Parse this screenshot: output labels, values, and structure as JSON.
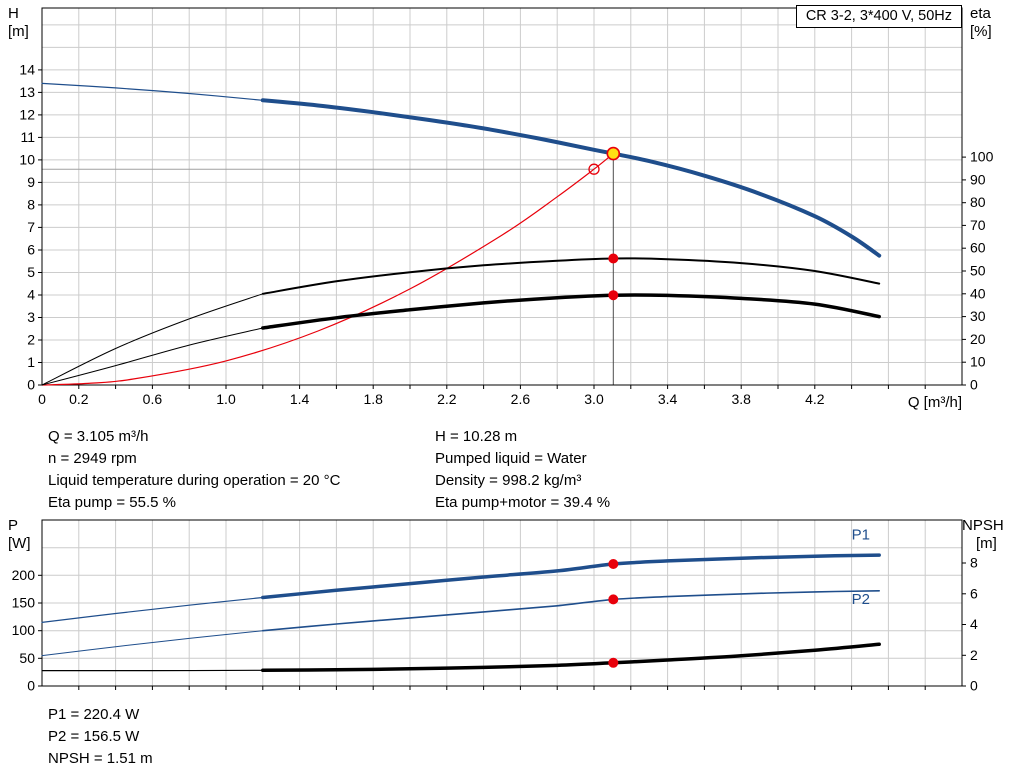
{
  "info_top": {
    "col1": [
      "Q = 3.105 m³/h",
      "n = 2949 rpm",
      "Liquid temperature during operation = 20 °C",
      "Eta pump = 55.5 %"
    ],
    "col2": [
      "H = 10.28 m",
      "Pumped liquid = Water",
      "Density = 998.2 kg/m³",
      "Eta pump+motor = 39.4 %"
    ]
  },
  "info_bottom": [
    "P1 = 220.4 W",
    "P2 = 156.5 W",
    "NPSH = 1.51 m"
  ],
  "colors": {
    "curve_blue": "#1f4e8c",
    "curve_red": "#e8000b",
    "curve_black": "#000000",
    "marker_red": "#e8000b",
    "marker_yellow": "#ffe014",
    "grid": "#cccccc",
    "guide_dark": "#4d4d4d",
    "guide_light": "#a0a0a0"
  },
  "chart_data": [
    {
      "name": "hq-eta-chart",
      "type": "line",
      "title": "CR 3-2, 3*400 V, 50Hz",
      "axes": {
        "x": {
          "label": "Q [m³/h]",
          "range": [
            0,
            5.0
          ],
          "grid_step": 0.2,
          "ticks": [
            {
              "v": 0,
              "l": "0"
            },
            {
              "v": 0.2,
              "l": "0.2"
            },
            {
              "v": 0.6,
              "l": "0.6"
            },
            {
              "v": 1.0,
              "l": "1.0"
            },
            {
              "v": 1.4,
              "l": "1.4"
            },
            {
              "v": 1.8,
              "l": "1.8"
            },
            {
              "v": 2.2,
              "l": "2.2"
            },
            {
              "v": 2.6,
              "l": "2.6"
            },
            {
              "v": 3.0,
              "l": "3.0"
            },
            {
              "v": 3.4,
              "l": "3.4"
            },
            {
              "v": 3.8,
              "l": "3.8"
            },
            {
              "v": 4.2,
              "l": "4.2"
            }
          ]
        },
        "left": {
          "name": "H",
          "unit": "[m]",
          "range": [
            0,
            16.75
          ],
          "grid_step": 1,
          "ticks": [
            0,
            1,
            2,
            3,
            4,
            5,
            6,
            7,
            8,
            9,
            10,
            11,
            12,
            13,
            14
          ]
        },
        "right": {
          "name": "eta",
          "unit": "[%]",
          "range": [
            0,
            165.4
          ],
          "ticks": [
            0,
            10,
            20,
            30,
            40,
            50,
            60,
            70,
            80,
            90,
            100
          ]
        }
      },
      "series": [
        {
          "sname": "head-curve-extension",
          "axis": "left",
          "color": "#1f4e8c",
          "width": 1.2,
          "x": [
            0,
            0.4,
            0.8,
            1.2
          ],
          "y": [
            13.4,
            13.2,
            12.95,
            12.65
          ]
        },
        {
          "sname": "head-curve",
          "axis": "left",
          "color": "#1f4e8c",
          "width": 4,
          "x": [
            1.2,
            1.5,
            1.8,
            2.1,
            2.4,
            2.7,
            3.0,
            3.105,
            3.3,
            3.6,
            3.9,
            4.2,
            4.4,
            4.55
          ],
          "y": [
            12.65,
            12.42,
            12.12,
            11.78,
            11.4,
            10.95,
            10.45,
            10.28,
            9.95,
            9.3,
            8.5,
            7.5,
            6.6,
            5.75
          ]
        },
        {
          "sname": "system-curve",
          "axis": "left",
          "color": "#e8000b",
          "width": 1.2,
          "x": [
            0,
            0.25,
            0.5,
            1.0,
            1.5,
            2.0,
            2.5,
            2.8,
            3.0,
            3.105
          ],
          "y": [
            0,
            0.07,
            0.27,
            1.07,
            2.4,
            4.27,
            6.66,
            8.36,
            9.59,
            10.28
          ]
        },
        {
          "sname": "eta-pump-extension",
          "axis": "right",
          "color": "#000000",
          "width": 1,
          "x": [
            0,
            0.4,
            0.8,
            1.2
          ],
          "y": [
            0,
            16,
            29,
            40
          ]
        },
        {
          "sname": "eta-pump-curve",
          "axis": "right",
          "color": "#000000",
          "width": 2,
          "x": [
            1.2,
            1.6,
            2.0,
            2.4,
            2.8,
            3.105,
            3.4,
            3.8,
            4.2,
            4.55
          ],
          "y": [
            40,
            45.5,
            49.5,
            52.5,
            54.5,
            55.5,
            55.2,
            53.5,
            50,
            44.5
          ]
        },
        {
          "sname": "eta-pump-motor-extension",
          "axis": "right",
          "color": "#000000",
          "width": 1,
          "x": [
            0,
            0.4,
            0.8,
            1.2
          ],
          "y": [
            0,
            8.5,
            17.5,
            25
          ]
        },
        {
          "sname": "eta-pump-motor-curve",
          "axis": "right",
          "color": "#000000",
          "width": 3.5,
          "x": [
            1.2,
            1.6,
            2.0,
            2.4,
            2.8,
            3.105,
            3.4,
            3.8,
            4.2,
            4.55
          ],
          "y": [
            25,
            29.5,
            33,
            36,
            38.3,
            39.4,
            39.3,
            38,
            35.5,
            30
          ]
        }
      ],
      "guides": [
        {
          "type": "hline",
          "axis": "left",
          "y": 9.59,
          "x1": 0,
          "x2": 3.0,
          "color": "#a0a0a0",
          "w": 1
        },
        {
          "type": "vline",
          "axis": "left",
          "x": 3.105,
          "y1": 0,
          "y2": 10.28,
          "color": "#4d4d4d",
          "w": 1
        }
      ],
      "markers": [
        {
          "x": 3.0,
          "y": 9.59,
          "axis": "left",
          "style": "open-red"
        },
        {
          "x": 3.105,
          "y": 10.28,
          "axis": "left",
          "style": "duty-yellow"
        },
        {
          "x": 3.105,
          "y": 55.5,
          "axis": "right",
          "style": "dot-red"
        },
        {
          "x": 3.105,
          "y": 39.4,
          "axis": "right",
          "style": "dot-red"
        }
      ],
      "texts": []
    },
    {
      "name": "power-npsh-chart",
      "type": "line",
      "title": "",
      "axes": {
        "x": {
          "label": "",
          "range": [
            0,
            5.0
          ],
          "grid_step": 0.2,
          "ticks": []
        },
        "left": {
          "name": "P",
          "unit": "[W]",
          "range": [
            0,
            300
          ],
          "grid_step": 50,
          "ticks": [
            0,
            50,
            100,
            150,
            200
          ]
        },
        "right": {
          "name": "NPSH",
          "unit": "[m]",
          "range": [
            0,
            10.8
          ],
          "ticks": [
            0,
            2,
            4,
            6,
            8
          ]
        }
      },
      "series": [
        {
          "sname": "p1-curve-extension",
          "axis": "left",
          "color": "#1f4e8c",
          "width": 1.2,
          "x": [
            0,
            0.4,
            0.8,
            1.2
          ],
          "y": [
            115,
            131,
            146,
            160
          ]
        },
        {
          "sname": "p1-curve",
          "axis": "left",
          "color": "#1f4e8c",
          "width": 3.5,
          "x": [
            1.2,
            1.6,
            2.0,
            2.4,
            2.8,
            3.105,
            3.4,
            3.8,
            4.2,
            4.55
          ],
          "y": [
            160,
            173,
            185,
            197,
            208,
            220.4,
            226,
            231,
            234.5,
            236.5
          ]
        },
        {
          "sname": "p2-curve-extension",
          "axis": "left",
          "color": "#1f4e8c",
          "width": 1,
          "x": [
            0,
            0.4,
            0.8,
            1.2
          ],
          "y": [
            55,
            71,
            86,
            100
          ]
        },
        {
          "sname": "p2-curve",
          "axis": "left",
          "color": "#1f4e8c",
          "width": 1.6,
          "x": [
            1.2,
            1.6,
            2.0,
            2.4,
            2.8,
            3.105,
            3.4,
            3.8,
            4.2,
            4.55
          ],
          "y": [
            100,
            112,
            123,
            134,
            145,
            156.5,
            161.5,
            166.5,
            170,
            172
          ]
        },
        {
          "sname": "npsh-curve-extension",
          "axis": "right",
          "color": "#000000",
          "width": 1.2,
          "x": [
            0,
            0.6,
            1.2
          ],
          "y": [
            1.0,
            1.0,
            1.02
          ]
        },
        {
          "sname": "npsh-curve",
          "axis": "right",
          "color": "#000000",
          "width": 3.5,
          "x": [
            1.2,
            1.6,
            2.0,
            2.4,
            2.8,
            3.105,
            3.4,
            3.8,
            4.2,
            4.55
          ],
          "y": [
            1.02,
            1.06,
            1.12,
            1.21,
            1.34,
            1.51,
            1.69,
            1.97,
            2.33,
            2.72
          ]
        }
      ],
      "guides": [],
      "markers": [
        {
          "x": 3.105,
          "y": 220.4,
          "axis": "left",
          "style": "dot-red"
        },
        {
          "x": 3.105,
          "y": 156.5,
          "axis": "left",
          "style": "dot-red"
        },
        {
          "x": 3.105,
          "y": 1.51,
          "axis": "right",
          "style": "dot-red"
        }
      ],
      "texts": [
        {
          "x": 4.45,
          "y": 265,
          "axis": "left",
          "text": "P1",
          "color": "#1f4e8c"
        },
        {
          "x": 4.45,
          "y": 148,
          "axis": "left",
          "text": "P2",
          "color": "#1f4e8c"
        }
      ]
    }
  ]
}
